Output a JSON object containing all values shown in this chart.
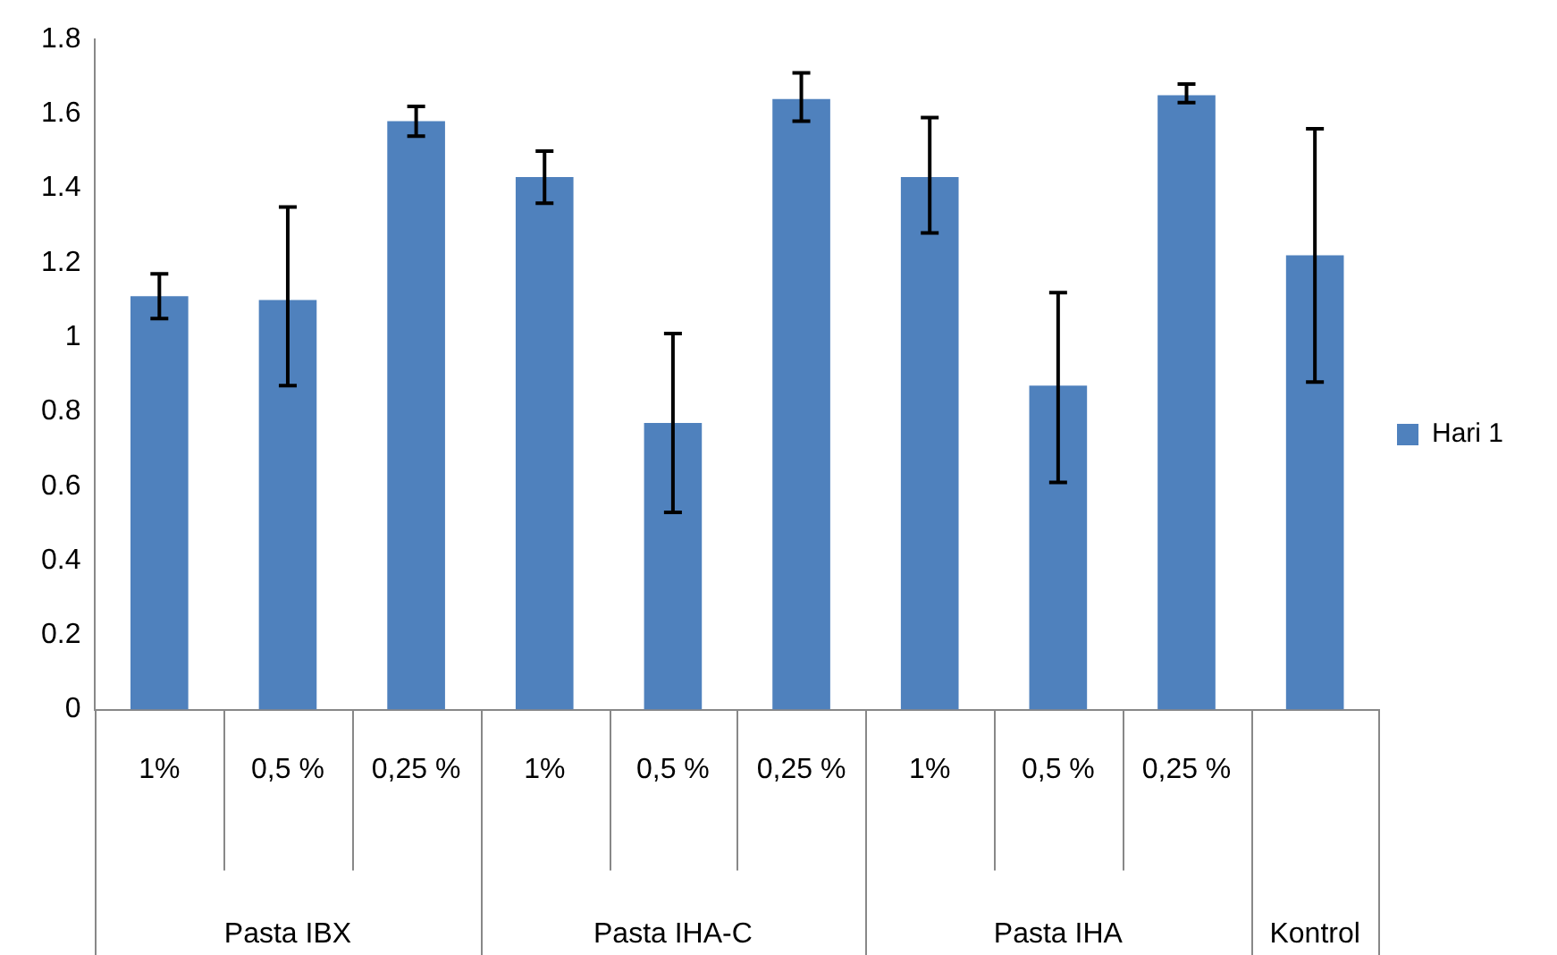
{
  "chart_data": {
    "type": "bar",
    "categories": [
      "1%",
      "0,5 %",
      "0,25 %",
      "1%",
      "0,5 %",
      "0,25 %",
      "1%",
      "0,5 %",
      "0,25 %",
      null
    ],
    "series": [
      {
        "name": "Hari 1",
        "color": "#4f81bd",
        "values": [
          1.11,
          1.1,
          1.58,
          1.43,
          0.77,
          1.64,
          1.43,
          0.87,
          1.65,
          1.22
        ],
        "errors": [
          [
            1.05,
            1.17
          ],
          [
            0.87,
            1.35
          ],
          [
            1.54,
            1.62
          ],
          [
            1.36,
            1.5
          ],
          [
            0.53,
            1.01
          ],
          [
            1.58,
            1.71
          ],
          [
            1.28,
            1.59
          ],
          [
            0.61,
            1.12
          ],
          [
            1.63,
            1.68
          ],
          [
            0.88,
            1.56
          ]
        ]
      }
    ],
    "ylim": [
      0,
      1.8
    ],
    "yticks": [
      0,
      0.2,
      0.4,
      0.6,
      0.8,
      1,
      1.2,
      1.4,
      1.6,
      1.8
    ],
    "grid": false,
    "legend": "right",
    "annotations": [
      "Pasta IBX",
      "Pasta IHA-C",
      "Pasta IHA",
      "Kontrol"
    ]
  }
}
